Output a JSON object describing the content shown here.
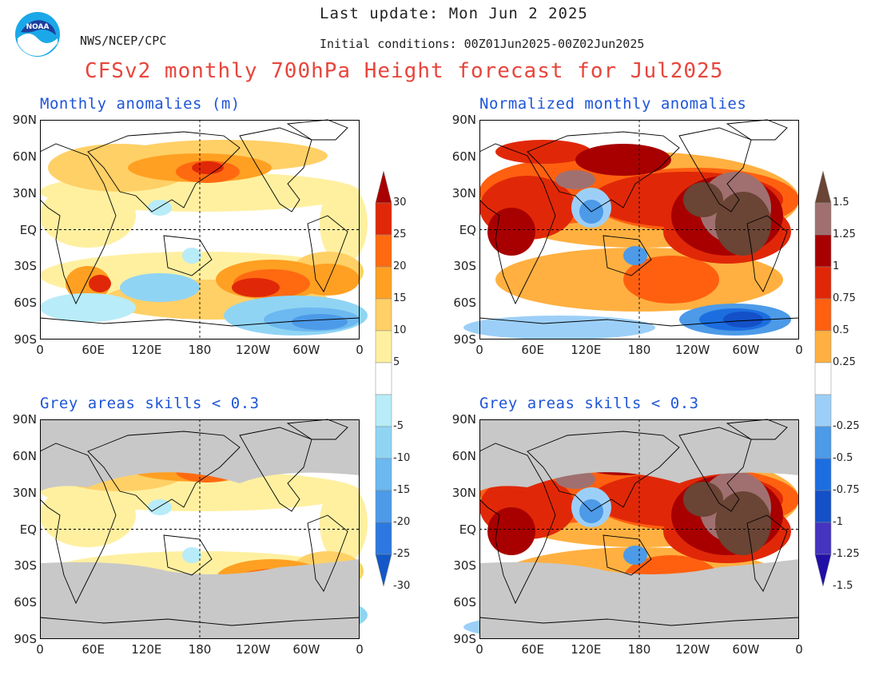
{
  "header": {
    "last_update": "Last update: Mon Jun 2 2025",
    "org": "NWS/NCEP/CPC",
    "initial_conditions": "Initial conditions: 00Z01Jun2025-00Z02Jun2025",
    "title": "CFSv2 monthly 700hPa Height forecast for Jul2025",
    "logo_text": "NOAA"
  },
  "panels": [
    {
      "id": "top-left",
      "title": "Monthly anomalies (m)",
      "masked": false
    },
    {
      "id": "top-right",
      "title": "Normalized monthly anomalies",
      "masked": false
    },
    {
      "id": "bottom-left",
      "title": "Grey areas skills < 0.3",
      "masked": true
    },
    {
      "id": "bottom-right",
      "title": "Grey areas skills < 0.3",
      "masked": true
    }
  ],
  "lat_ticks": [
    "90N",
    "60N",
    "30N",
    "EQ",
    "30S",
    "60S",
    "90S"
  ],
  "lon_ticks": [
    "0",
    "60E",
    "120E",
    "180",
    "120W",
    "60W",
    "0"
  ],
  "colorbar_left": {
    "labels": [
      "30",
      "25",
      "20",
      "15",
      "10",
      "5",
      "-5",
      "-10",
      "-15",
      "-20",
      "-25",
      "-30"
    ]
  },
  "colorbar_right": {
    "labels": [
      "1.5",
      "1.25",
      "1",
      "0.75",
      "0.5",
      "0.25",
      "-0.25",
      "-0.5",
      "-0.75",
      "-1",
      "-1.25",
      "-1.5"
    ]
  },
  "colors": {
    "title_red": "#e8453c",
    "panel_title_blue": "#1f55d8",
    "mask_grey": "#c8c8c8",
    "pos_left": [
      "#fff0a0",
      "#ffd066",
      "#ffa022",
      "#ff6a10",
      "#e02808",
      "#a80000"
    ],
    "neg_left": [
      "#b8ecf8",
      "#90d4f4",
      "#6cb8f0",
      "#4c9ae8",
      "#2c78e0",
      "#1458c8"
    ],
    "pos_right": [
      "#ffb040",
      "#ff6010",
      "#e02808",
      "#a80000",
      "#a07070",
      "#6a4434"
    ],
    "neg_right": [
      "#9ccff8",
      "#4c9ae8",
      "#1c6ee0",
      "#1450c8",
      "#4434c0",
      "#2010a8"
    ]
  }
}
